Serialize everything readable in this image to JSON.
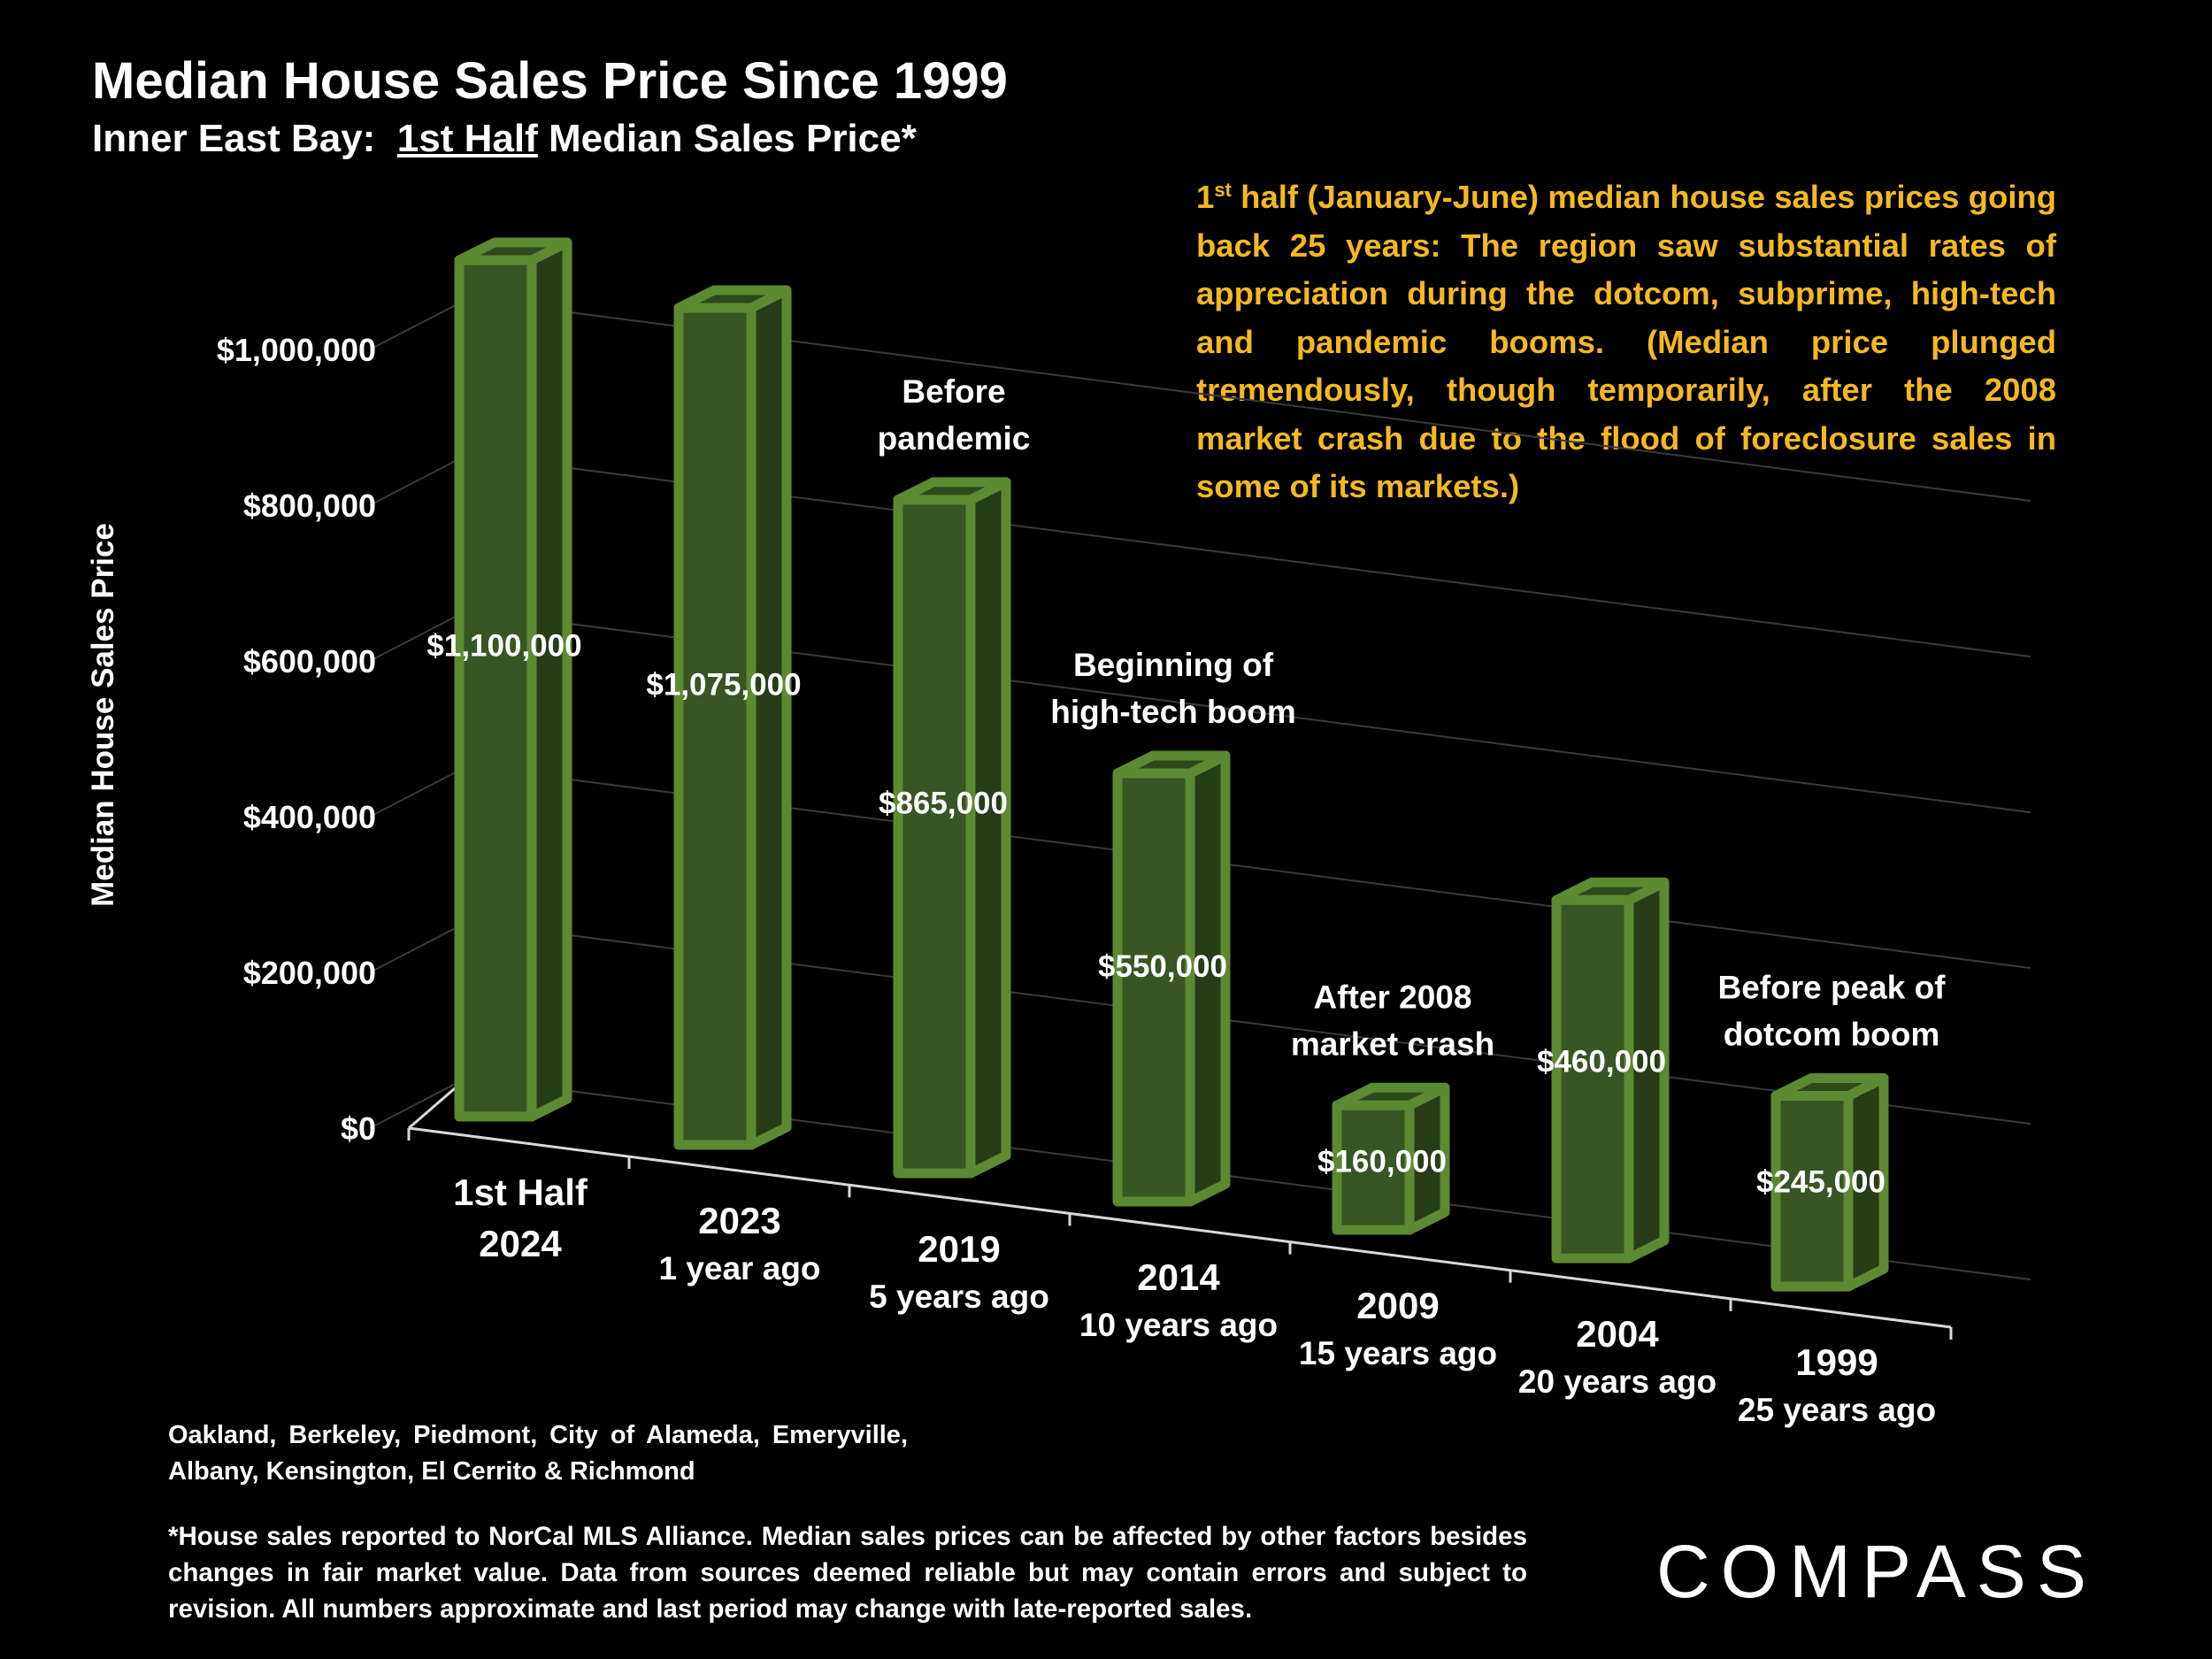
{
  "title": "Median House Sales Price Since 1999",
  "subtitle_prefix": "Inner East Bay:  ",
  "subtitle_underlined": "1st Half",
  "subtitle_suffix": " Median Sales Price*",
  "note": {
    "sup_lead": "1",
    "sup": "st",
    "text": " half (January-June) median house sales prices going back 25 years:  The region saw substantial rates of appreciation during the dotcom, subprime, high-tech and pandemic booms. (Median price plunged tremendously, though temporarily, after the 2008 market crash due to the flood of foreclosure sales in some of its markets.)"
  },
  "cities": "Oakland, Berkeley, Piedmont, City of Alameda, Emeryville, Albany, Kensington, El Cerrito & Richmond",
  "footnote": "*House sales reported to NorCal MLS Alliance. Median sales prices can be affected by other factors besides changes in fair market value. Data from sources deemed reliable but may contain errors and subject to revision. All numbers  approximate and last period may change with late-reported sales.",
  "logo": "COMPASS",
  "chart_data": {
    "type": "bar",
    "ylabel": "Median House Sales Price",
    "ylim": [
      0,
      1000000
    ],
    "ytick_labels": [
      "$0",
      "$200,000",
      "$400,000",
      "$600,000",
      "$800,000",
      "$1,000,000"
    ],
    "ytick_values": [
      0,
      200000,
      400000,
      600000,
      800000,
      1000000
    ],
    "categories": [
      [
        "1st Half",
        "2024"
      ],
      [
        "2023",
        "1 year ago"
      ],
      [
        "2019",
        "5 years ago"
      ],
      [
        "2014",
        "10 years ago"
      ],
      [
        "2009",
        "15 years ago"
      ],
      [
        "2004",
        "20 years ago"
      ],
      [
        "1999",
        "25 years ago"
      ]
    ],
    "values": [
      1100000,
      1075000,
      865000,
      550000,
      160000,
      460000,
      245000
    ],
    "value_labels": [
      "$1,100,000",
      "$1,075,000",
      "$865,000",
      "$550,000",
      "$160,000",
      "$460,000",
      "$245,000"
    ],
    "annotations": [
      "",
      "",
      [
        "Before",
        "pandemic"
      ],
      [
        "Beginning of",
        "high-tech boom"
      ],
      [
        "After 2008",
        "market crash"
      ],
      "",
      [
        "Before peak of",
        "dotcom boom"
      ]
    ],
    "colors": {
      "bar_front": "#375623",
      "bar_side": "#263d18",
      "bar_top": "#2d4a1c",
      "bar_edge": "#5b8a32",
      "note": "#f5b820"
    },
    "grid": true,
    "style": "3d"
  }
}
